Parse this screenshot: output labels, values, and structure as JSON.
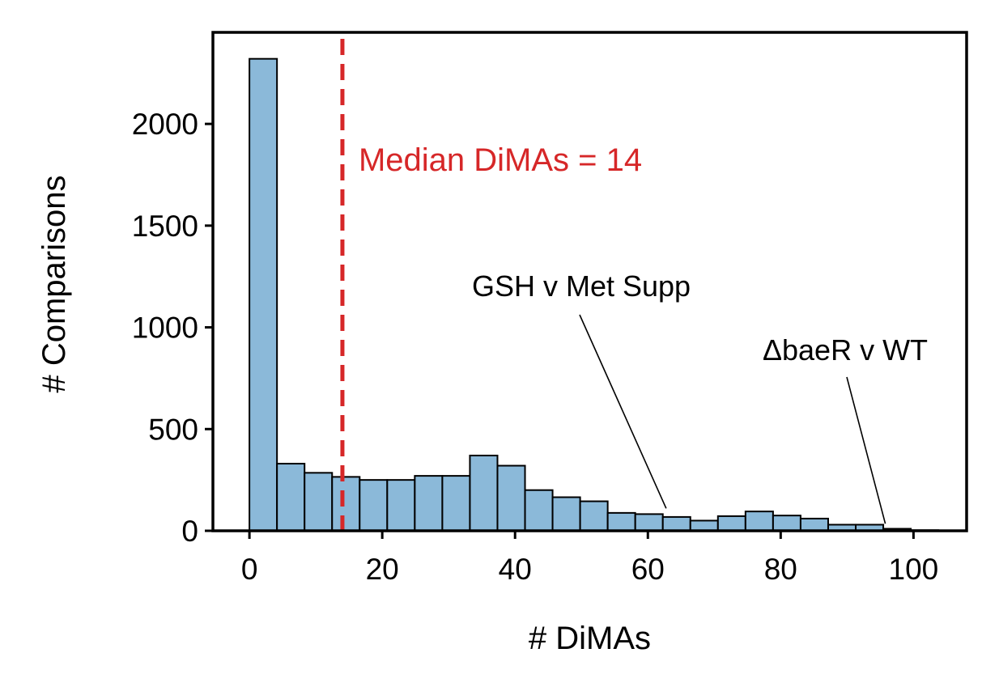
{
  "chart_data": {
    "type": "bar",
    "subtype": "histogram",
    "xlabel": "# DiMAs",
    "ylabel": "# Comparisons",
    "xlim": [
      -5.5,
      108
    ],
    "ylim": [
      0,
      2450
    ],
    "xticks": [
      0,
      20,
      40,
      60,
      80,
      100
    ],
    "yticks": [
      0,
      500,
      1000,
      1500,
      2000
    ],
    "bin_width": 4.15,
    "bin_start": 0,
    "bins": [
      {
        "x0": 0.0,
        "count": 2320
      },
      {
        "x0": 4.15,
        "count": 330
      },
      {
        "x0": 8.3,
        "count": 285
      },
      {
        "x0": 12.45,
        "count": 265
      },
      {
        "x0": 16.6,
        "count": 250
      },
      {
        "x0": 20.75,
        "count": 250
      },
      {
        "x0": 24.9,
        "count": 270
      },
      {
        "x0": 29.05,
        "count": 270
      },
      {
        "x0": 33.2,
        "count": 370
      },
      {
        "x0": 37.35,
        "count": 320
      },
      {
        "x0": 41.5,
        "count": 200
      },
      {
        "x0": 45.65,
        "count": 165
      },
      {
        "x0": 49.8,
        "count": 145
      },
      {
        "x0": 53.95,
        "count": 88
      },
      {
        "x0": 58.1,
        "count": 82
      },
      {
        "x0": 62.25,
        "count": 68
      },
      {
        "x0": 66.4,
        "count": 50
      },
      {
        "x0": 70.55,
        "count": 72
      },
      {
        "x0": 74.7,
        "count": 95
      },
      {
        "x0": 78.85,
        "count": 75
      },
      {
        "x0": 83.0,
        "count": 60
      },
      {
        "x0": 87.15,
        "count": 30
      },
      {
        "x0": 91.3,
        "count": 30
      },
      {
        "x0": 95.45,
        "count": 10
      },
      {
        "x0": 99.6,
        "count": 3
      }
    ],
    "bar_color": "#8bb9d9",
    "bar_edge_color": "#000000",
    "median_line": {
      "x": 14,
      "color": "#d62728",
      "style": "dashed",
      "label": "Median DiMAs = 14"
    },
    "annotations": [
      {
        "text": "GSH v Met Supp",
        "target": {
          "x": 63,
          "y": 110
        },
        "text_anchor_at": {
          "x": 50.5,
          "y": 1060
        }
      },
      {
        "text": "ΔbaeR v WT",
        "target": {
          "x": 96,
          "y": 35
        },
        "text_anchor_at": {
          "x": 90.3,
          "y": 755
        }
      }
    ]
  }
}
